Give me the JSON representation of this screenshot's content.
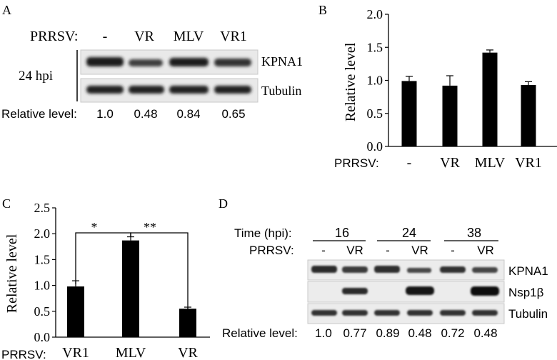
{
  "panels": {
    "A": {
      "letter": "A",
      "virus_label": "PRRSV:",
      "lanes": [
        "-",
        "VR",
        "MLV",
        "VR1"
      ],
      "time_label": "24 hpi",
      "blots": [
        "KPNA1",
        "Tubulin"
      ],
      "relative_label": "Relative level:",
      "relative_values": [
        "1.0",
        "0.48",
        "0.84",
        "0.65"
      ]
    },
    "B": {
      "letter": "B",
      "x_prefix": "PRRSV:"
    },
    "C": {
      "letter": "C",
      "x_prefix": "PRRSV:",
      "sig_left": "*",
      "sig_right": "**"
    },
    "D": {
      "letter": "D",
      "time_label": "Time (hpi):",
      "virus_label": "PRRSV:",
      "times": [
        "16",
        "24",
        "38"
      ],
      "lanes": [
        "-",
        "VR",
        "-",
        "VR",
        "-",
        "VR"
      ],
      "blots": [
        "KPNA1",
        "Nsp1β",
        "Tubulin"
      ],
      "relative_label": "Relative level:",
      "relative_values": [
        "1.0",
        "0.77",
        "0.89",
        "0.48",
        "0.72",
        "0.48"
      ]
    }
  },
  "chart_data": [
    {
      "type": "bar",
      "panel": "B",
      "categories": [
        "-",
        "VR",
        "MLV",
        "VR1"
      ],
      "values": [
        0.99,
        0.92,
        1.42,
        0.93
      ],
      "errors": [
        0.07,
        0.15,
        0.04,
        0.05
      ],
      "ylabel": "Relative level",
      "ylim": [
        0,
        2.0
      ],
      "yticks": [
        "0.0",
        "0.5",
        "1.0",
        "1.5",
        "2.0"
      ],
      "grid": false
    },
    {
      "type": "bar",
      "panel": "C",
      "categories": [
        "VR1",
        "MLV",
        "VR"
      ],
      "values": [
        0.98,
        1.87,
        0.55
      ],
      "errors": [
        0.11,
        0.07,
        0.03
      ],
      "ylabel": "Relative level",
      "ylim": [
        0,
        2.5
      ],
      "yticks": [
        "0.0",
        "0.5",
        "1.0",
        "1.5",
        "2.0",
        "2.5"
      ],
      "grid": false
    }
  ]
}
